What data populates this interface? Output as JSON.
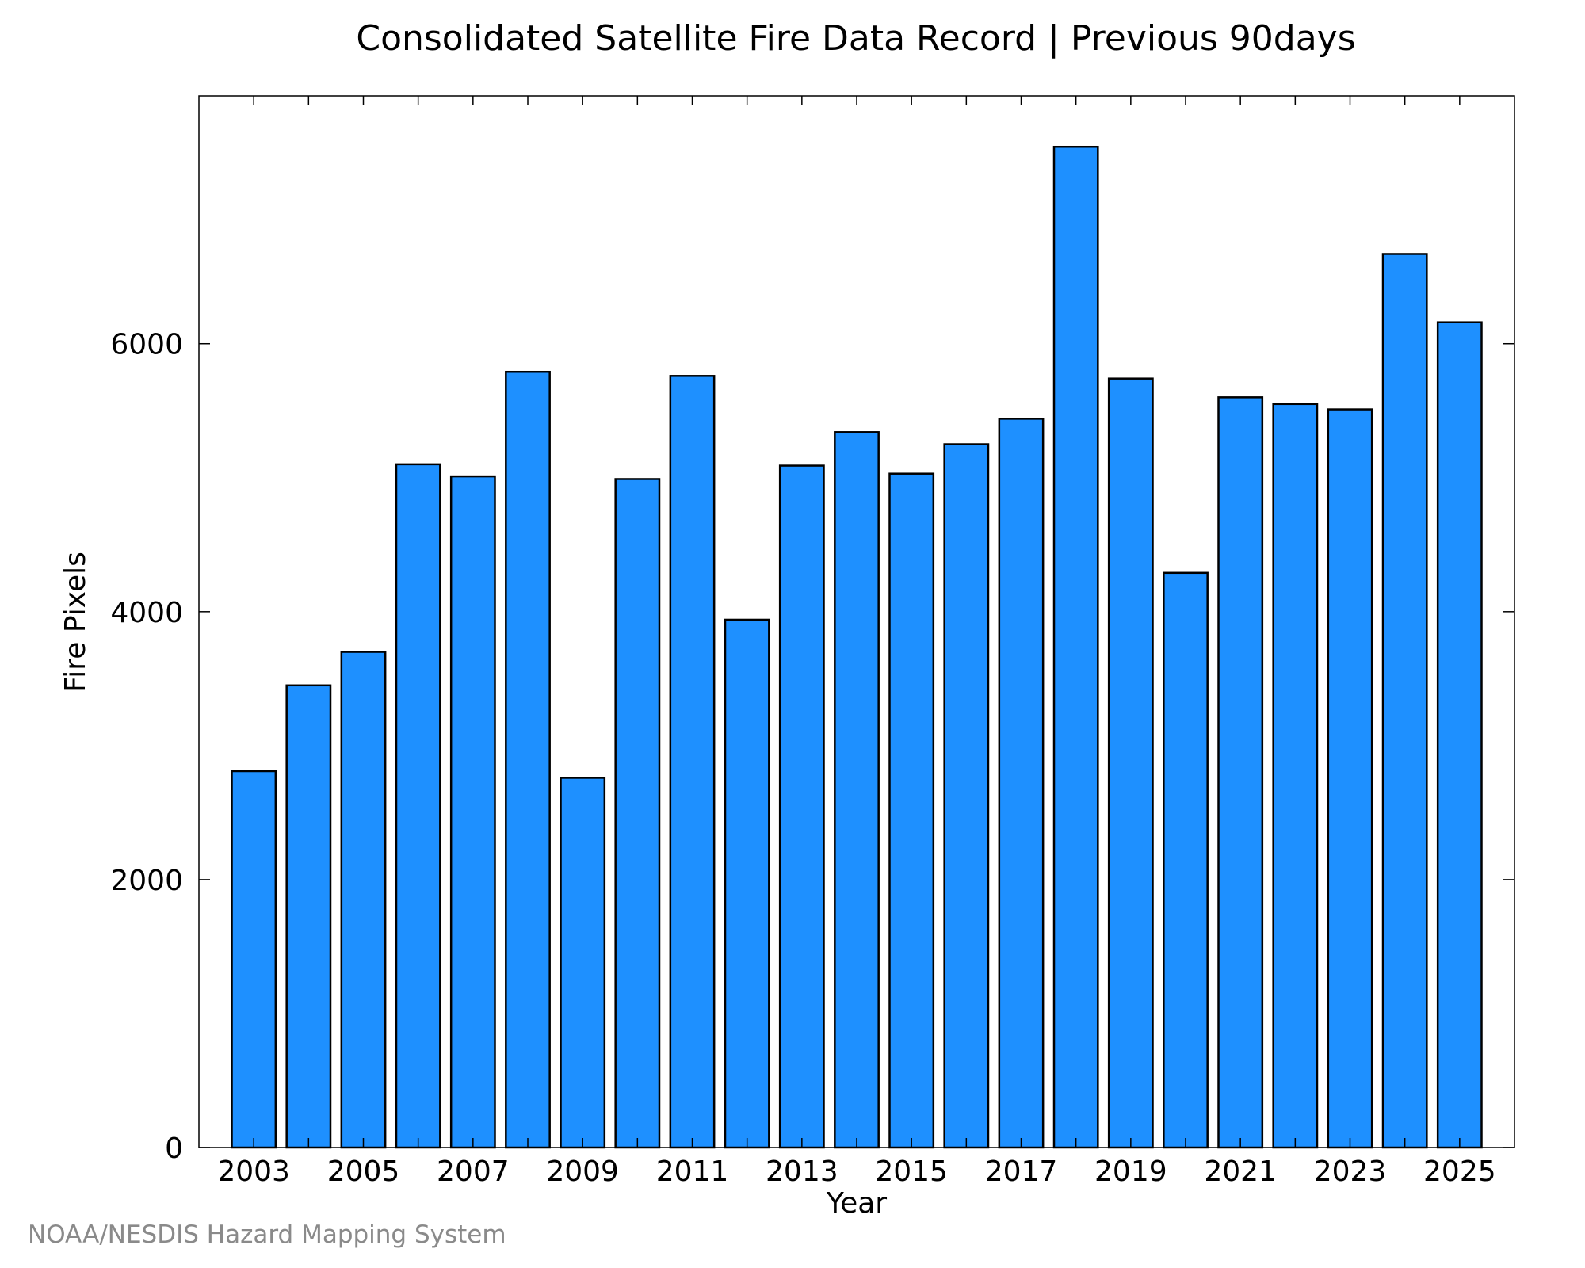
{
  "chart_data": {
    "type": "bar",
    "title": "Consolidated Satellite Fire Data Record | Previous 90days",
    "xlabel": "Year",
    "ylabel": "Fire Pixels",
    "categories": [
      "2003",
      "2004",
      "2005",
      "2006",
      "2007",
      "2008",
      "2009",
      "2010",
      "2011",
      "2012",
      "2013",
      "2014",
      "2015",
      "2016",
      "2017",
      "2018",
      "2019",
      "2020",
      "2021",
      "2022",
      "2023",
      "2024",
      "2025"
    ],
    "values": [
      2810,
      3450,
      3700,
      5100,
      5010,
      5790,
      2760,
      4990,
      5760,
      3940,
      5090,
      5340,
      5030,
      5250,
      5440,
      7470,
      5740,
      4290,
      5600,
      5550,
      5510,
      6670,
      6160
    ],
    "x_tick_labels": [
      "2003",
      "2005",
      "2007",
      "2009",
      "2011",
      "2013",
      "2015",
      "2017",
      "2019",
      "2021",
      "2023",
      "2025"
    ],
    "y_ticks": [
      0,
      2000,
      4000,
      6000
    ],
    "ylim": [
      0,
      7850
    ],
    "grid": false,
    "bar_color": "#1e90ff",
    "bar_edge_color": "#000000"
  },
  "footer": {
    "credit": "NOAA/NESDIS Hazard Mapping System"
  }
}
